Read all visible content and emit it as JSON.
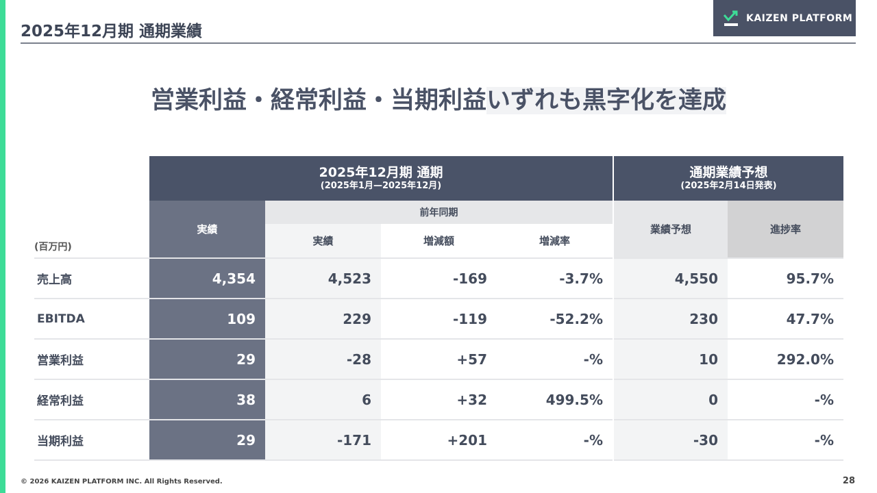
{
  "page_title": "2025年12月期 通期業績",
  "logo_text": "KAIZEN PLATFORM",
  "headline": {
    "part1": "営業利益・経常利益・当期利益",
    "part2": "いずれも黒字化を達成"
  },
  "table": {
    "unit": "(百万円)",
    "group1": {
      "title": "2025年12月期 通期",
      "period": "(2025年1月—2025年12月)"
    },
    "group2": {
      "title": "通期業績予想",
      "period": "(2025年2月14日発表)"
    },
    "prev_year": "前年同期",
    "cols": [
      "実績",
      "実績",
      "増減額",
      "増減率",
      "業績予想",
      "進捗率"
    ],
    "rows": [
      {
        "label": "売上高",
        "values": [
          "4,354",
          "4,523",
          "-169",
          "-3.7%",
          "4,550",
          "95.7%"
        ]
      },
      {
        "label": "EBITDA",
        "values": [
          "109",
          "229",
          "-119",
          "-52.2%",
          "230",
          "47.7%"
        ]
      },
      {
        "label": "営業利益",
        "values": [
          "29",
          "-28",
          "+57",
          "-%",
          "10",
          "292.0%"
        ]
      },
      {
        "label": "経常利益",
        "values": [
          "38",
          "6",
          "+32",
          "499.5%",
          "0",
          "-%"
        ]
      },
      {
        "label": "当期利益",
        "values": [
          "29",
          "-171",
          "+201",
          "-%",
          "-30",
          "-%"
        ]
      }
    ]
  },
  "footer": "© 2026 KAIZEN PLATFORM INC. All Rights Reserved.",
  "page_number": "28"
}
